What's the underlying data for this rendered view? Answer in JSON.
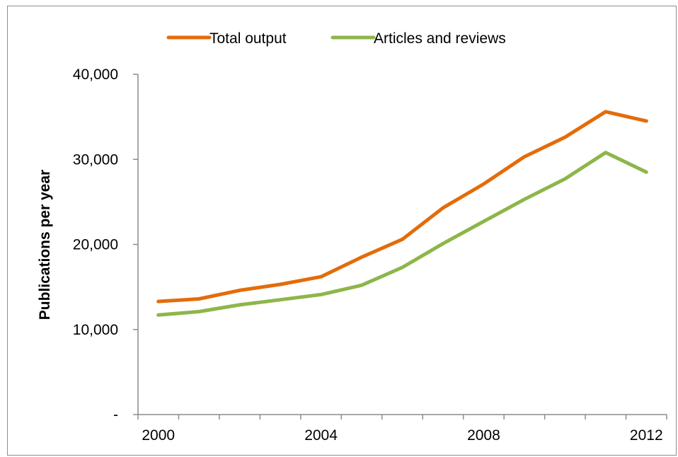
{
  "chart_data": {
    "type": "line",
    "title": "",
    "xlabel": "",
    "ylabel": "Publications per year",
    "x": [
      2000,
      2001,
      2002,
      2003,
      2004,
      2005,
      2006,
      2007,
      2008,
      2009,
      2010,
      2011,
      2012
    ],
    "x_tick_labels": [
      "2000",
      "2004",
      "2008",
      "2012"
    ],
    "y_tick_labels": [
      "-",
      "10,000",
      "20,000",
      "30,000",
      "40,000"
    ],
    "ylim": [
      0,
      40000
    ],
    "grid": false,
    "legend_position": "top",
    "series": [
      {
        "name": "Total output",
        "color": "#e36c0a",
        "values": [
          13300,
          13600,
          14600,
          15300,
          16200,
          18500,
          20600,
          24300,
          27100,
          30300,
          32600,
          35600,
          34500
        ]
      },
      {
        "name": "Articles and reviews",
        "color": "#8db64a",
        "values": [
          11700,
          12100,
          12900,
          13500,
          14100,
          15200,
          17300,
          20100,
          22700,
          25300,
          27700,
          30800,
          28500
        ]
      }
    ]
  }
}
